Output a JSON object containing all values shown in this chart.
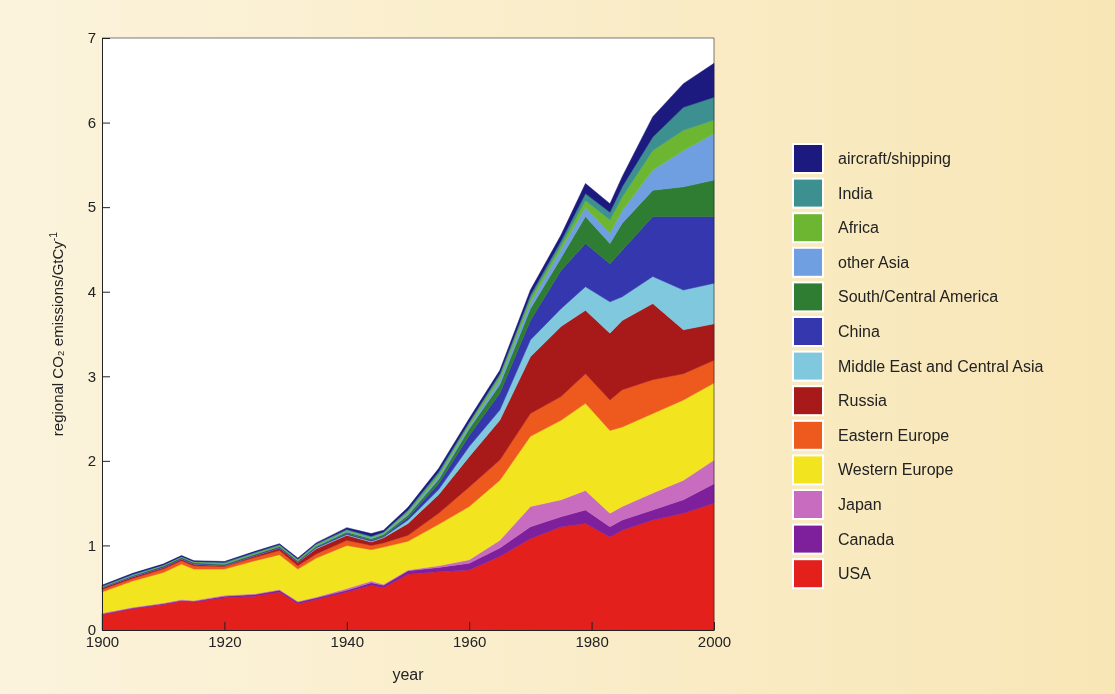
{
  "chart_data": {
    "type": "area",
    "stacked": true,
    "xlabel": "year",
    "ylabel": "regional CO₂ emissions/GtCy$^{-1}$",
    "x": [
      1900,
      1905,
      1910,
      1913,
      1915,
      1920,
      1925,
      1929,
      1932,
      1935,
      1940,
      1944,
      1946,
      1950,
      1955,
      1960,
      1965,
      1970,
      1975,
      1979,
      1983,
      1985,
      1990,
      1995,
      2000
    ],
    "xlim": [
      1900,
      2000
    ],
    "xticks": [
      1900,
      1920,
      1940,
      1960,
      1980,
      2000
    ],
    "ylim": [
      0,
      7
    ],
    "yticks": [
      0,
      1,
      2,
      3,
      4,
      5,
      6,
      7
    ],
    "grid": false,
    "legend": "right",
    "series": [
      {
        "name": "USA",
        "color": "#e3201b",
        "values": [
          0.18,
          0.25,
          0.3,
          0.34,
          0.33,
          0.38,
          0.4,
          0.45,
          0.31,
          0.36,
          0.45,
          0.53,
          0.5,
          0.66,
          0.69,
          0.71,
          0.87,
          1.08,
          1.22,
          1.26,
          1.1,
          1.18,
          1.3,
          1.38,
          1.5
        ]
      },
      {
        "name": "Canada",
        "color": "#7e1f9c",
        "values": [
          0.01,
          0.01,
          0.01,
          0.01,
          0.01,
          0.02,
          0.02,
          0.02,
          0.02,
          0.02,
          0.02,
          0.03,
          0.03,
          0.04,
          0.05,
          0.08,
          0.1,
          0.14,
          0.12,
          0.16,
          0.12,
          0.12,
          0.12,
          0.16,
          0.23
        ]
      },
      {
        "name": "Japan",
        "color": "#c86cc0",
        "values": [
          0.01,
          0.01,
          0.01,
          0.01,
          0.01,
          0.01,
          0.01,
          0.01,
          0.01,
          0.01,
          0.02,
          0.02,
          0.01,
          0.01,
          0.02,
          0.04,
          0.09,
          0.24,
          0.2,
          0.23,
          0.16,
          0.16,
          0.2,
          0.23,
          0.28
        ]
      },
      {
        "name": "Western Europe",
        "color": "#f2e41e",
        "values": [
          0.25,
          0.31,
          0.36,
          0.42,
          0.37,
          0.31,
          0.39,
          0.41,
          0.38,
          0.46,
          0.51,
          0.37,
          0.44,
          0.34,
          0.49,
          0.63,
          0.71,
          0.83,
          0.94,
          1.03,
          0.98,
          0.94,
          0.94,
          0.95,
          0.91
        ]
      },
      {
        "name": "Eastern Europe",
        "color": "#ee5a1e",
        "values": [
          0.03,
          0.03,
          0.04,
          0.04,
          0.04,
          0.03,
          0.04,
          0.05,
          0.04,
          0.05,
          0.06,
          0.05,
          0.05,
          0.07,
          0.13,
          0.23,
          0.24,
          0.27,
          0.28,
          0.35,
          0.36,
          0.44,
          0.4,
          0.31,
          0.27
        ]
      },
      {
        "name": "Russia",
        "color": "#a8191a",
        "values": [
          0.02,
          0.02,
          0.02,
          0.02,
          0.02,
          0.01,
          0.02,
          0.03,
          0.04,
          0.06,
          0.06,
          0.04,
          0.06,
          0.14,
          0.22,
          0.36,
          0.47,
          0.67,
          0.83,
          0.75,
          0.79,
          0.82,
          0.9,
          0.52,
          0.43
        ]
      },
      {
        "name": "Middle East and Central Asia",
        "color": "#80c8de",
        "values": [
          0,
          0,
          0,
          0,
          0,
          0,
          0,
          0,
          0,
          0.01,
          0.01,
          0.01,
          0.01,
          0.04,
          0.06,
          0.12,
          0.12,
          0.2,
          0.21,
          0.28,
          0.37,
          0.28,
          0.32,
          0.47,
          0.48
        ]
      },
      {
        "name": "China",
        "color": "#3437ae",
        "values": [
          0.01,
          0.01,
          0.01,
          0.01,
          0.01,
          0.01,
          0.01,
          0.01,
          0.01,
          0.01,
          0.01,
          0.01,
          0.01,
          0.03,
          0.07,
          0.13,
          0.2,
          0.23,
          0.45,
          0.51,
          0.45,
          0.55,
          0.71,
          0.87,
          0.79
        ]
      },
      {
        "name": "South/Central America",
        "color": "#2e7d32",
        "values": [
          0,
          0,
          0.01,
          0.01,
          0.01,
          0.01,
          0.01,
          0.01,
          0.01,
          0.01,
          0.02,
          0.02,
          0.02,
          0.03,
          0.05,
          0.08,
          0.1,
          0.14,
          0.15,
          0.32,
          0.24,
          0.32,
          0.31,
          0.35,
          0.43
        ]
      },
      {
        "name": "other Asia",
        "color": "#6f9fe0",
        "values": [
          0,
          0.01,
          0,
          0,
          0,
          0,
          0,
          0,
          0,
          0.01,
          0.01,
          0.01,
          0.01,
          0.02,
          0.03,
          0.03,
          0.06,
          0.07,
          0.1,
          0.11,
          0.12,
          0.15,
          0.24,
          0.43,
          0.55
        ]
      },
      {
        "name": "Africa",
        "color": "#6cb631",
        "values": [
          0.01,
          0,
          0.01,
          0.01,
          0.01,
          0.01,
          0.01,
          0.01,
          0.01,
          0.01,
          0.01,
          0.01,
          0.01,
          0.02,
          0.03,
          0.03,
          0.04,
          0.05,
          0.05,
          0.08,
          0.16,
          0.16,
          0.23,
          0.24,
          0.16
        ]
      },
      {
        "name": "India",
        "color": "#3c9090",
        "values": [
          0,
          0.01,
          0,
          0,
          0,
          0.01,
          0.01,
          0.01,
          0.01,
          0.01,
          0.01,
          0.01,
          0.01,
          0.02,
          0.03,
          0.02,
          0.03,
          0.04,
          0.05,
          0.08,
          0.09,
          0.12,
          0.16,
          0.27,
          0.27
        ]
      },
      {
        "name": "aircraft/shipping",
        "color": "#1c1a7e",
        "values": [
          0.01,
          0.01,
          0.01,
          0.01,
          0.01,
          0.01,
          0.01,
          0.01,
          0.01,
          0.01,
          0.02,
          0.03,
          0.02,
          0.03,
          0.04,
          0.04,
          0.04,
          0.06,
          0.07,
          0.12,
          0.1,
          0.12,
          0.24,
          0.28,
          0.4
        ]
      }
    ]
  }
}
